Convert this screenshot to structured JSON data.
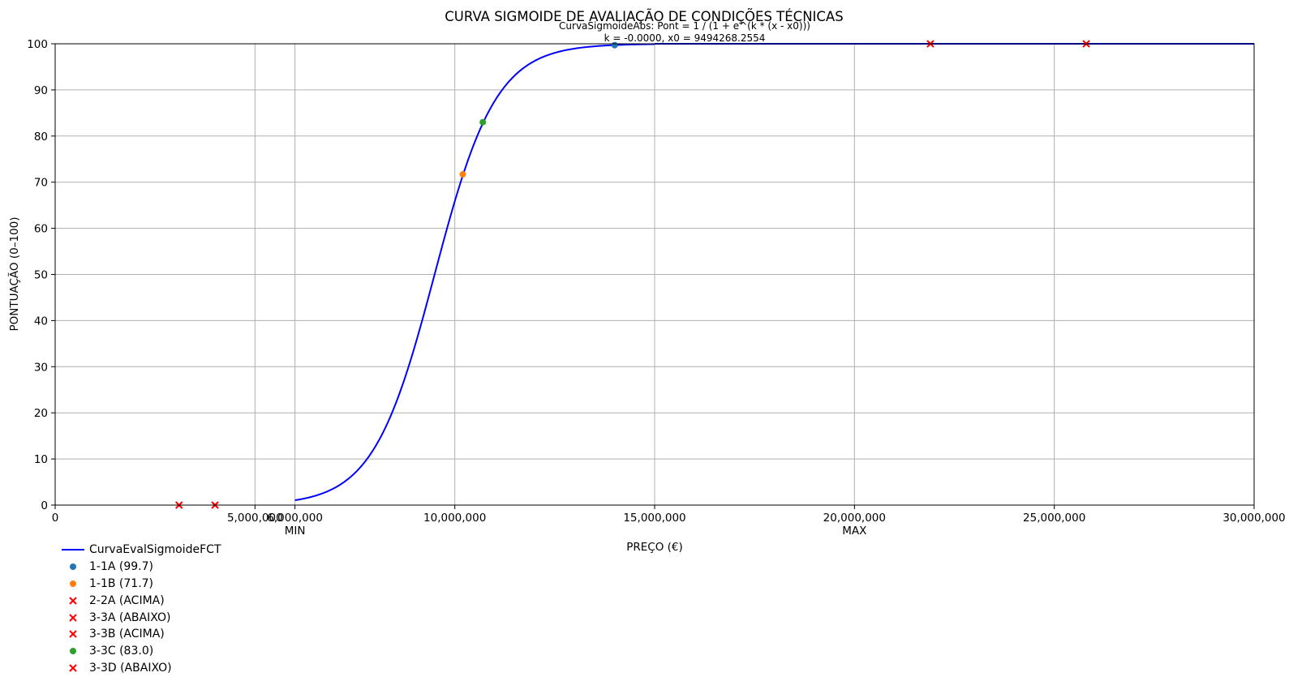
{
  "chart_data": {
    "type": "line",
    "title": "CURVA SIGMOIDE DE AVALIAÇÃO DE CONDIÇÕES TÉCNICAS",
    "subtitle_line1": "CurvaSigmoideAbs: Pont = 1 / (1 + e^(k * (x - x0)))",
    "subtitle_line2": "k = -0.0000, x0 = 9494268.2554",
    "xlabel": "PREÇO (€)",
    "ylabel": "PONTUAÇÃO (0–100)",
    "xlim": [
      0,
      30000000
    ],
    "ylim": [
      0,
      100
    ],
    "x_ticks": [
      {
        "value": 0,
        "label": "0"
      },
      {
        "value": 5000000,
        "label": "5,000,000"
      },
      {
        "value": 6000000,
        "label": "6,000,000"
      },
      {
        "value": 10000000,
        "label": "10,000,000"
      },
      {
        "value": 15000000,
        "label": "15,000,000"
      },
      {
        "value": 20000000,
        "label": "20,000,000"
      },
      {
        "value": 25000000,
        "label": "25,000,000"
      },
      {
        "value": 30000000,
        "label": "30,000,000"
      }
    ],
    "x_annotations": [
      {
        "value": 6000000,
        "label": "MIN"
      },
      {
        "value": 20000000,
        "label": "MAX"
      }
    ],
    "y_ticks": [
      0,
      10,
      20,
      30,
      40,
      50,
      60,
      70,
      80,
      90,
      100
    ],
    "grid": true,
    "legend_position": "below-left",
    "curve": {
      "name": "CurvaEvalSigmoideFCT",
      "color": "#0000ff",
      "x_start": 6000000,
      "x_end": 15000000,
      "x0": 9494268.2554,
      "k": -1.3e-06
    },
    "series": [
      {
        "name": "1-1A (99.7)",
        "marker": "circle",
        "color": "#1f77b4",
        "x": 14000000,
        "y": 99.7
      },
      {
        "name": "1-1B (71.7)",
        "marker": "circle",
        "color": "#ff7f0e",
        "x": 10200000,
        "y": 71.7
      },
      {
        "name": "2-2A (ACIMA)",
        "marker": "x",
        "color": "#ff0000",
        "x": 21900000,
        "y": 100
      },
      {
        "name": "3-3A (ABAIXO)",
        "marker": "x",
        "color": "#ff0000",
        "x": 3100000,
        "y": 0
      },
      {
        "name": "3-3B (ACIMA)",
        "marker": "x",
        "color": "#ff0000",
        "x": 25800000,
        "y": 100
      },
      {
        "name": "3-3C (83.0)",
        "marker": "circle",
        "color": "#2ca02c",
        "x": 10700000,
        "y": 83.0
      },
      {
        "name": "3-3D (ABAIXO)",
        "marker": "x",
        "color": "#ff0000",
        "x": 4000000,
        "y": 0
      }
    ]
  }
}
